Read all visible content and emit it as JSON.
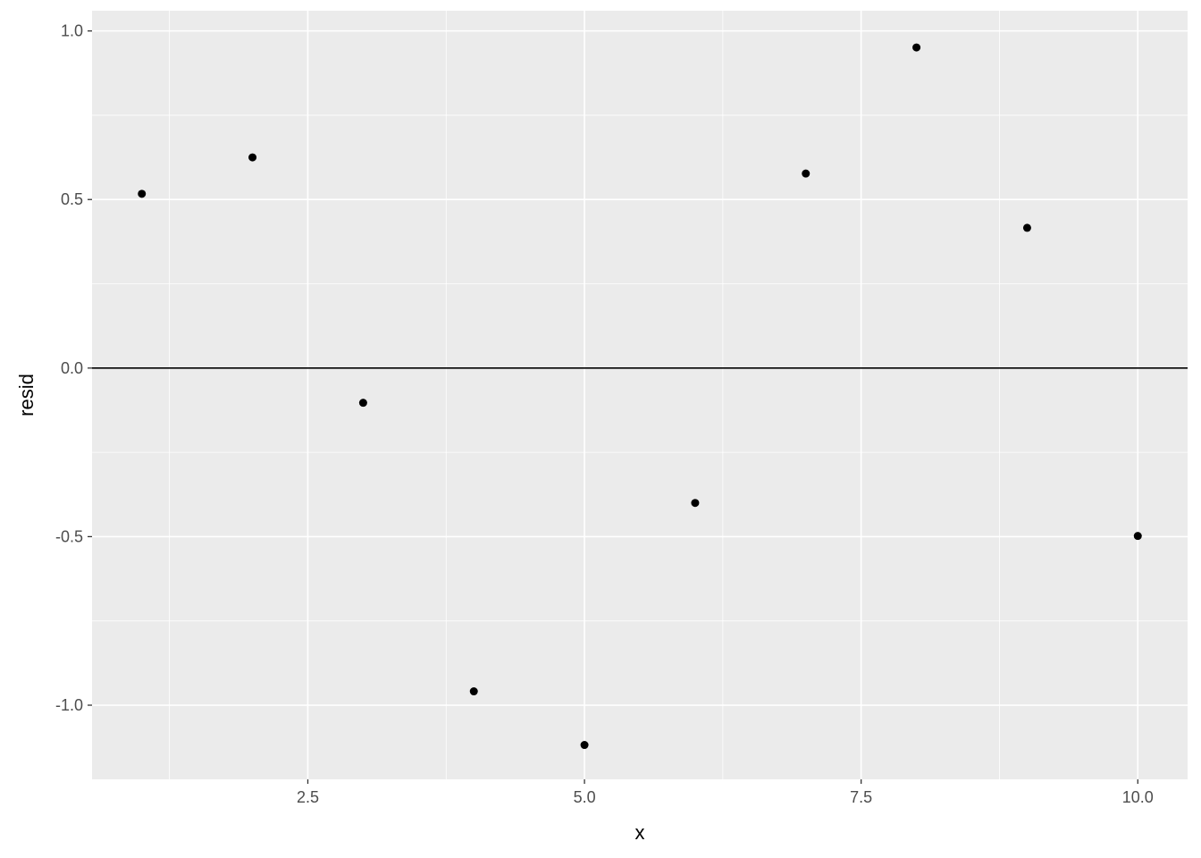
{
  "chart_data": {
    "type": "scatter",
    "title": "",
    "xlabel": "x",
    "ylabel": "resid",
    "xlim": [
      0.55,
      10.45
    ],
    "ylim": [
      -1.22,
      1.06
    ],
    "x_ticks": [
      2.5,
      5.0,
      7.5,
      10.0
    ],
    "x_tick_labels": [
      "2.5",
      "5.0",
      "7.5",
      "10.0"
    ],
    "y_ticks": [
      1.0,
      0.5,
      0.0,
      -0.5,
      -1.0
    ],
    "y_tick_labels": [
      "1.0",
      "0.5",
      "0.0",
      "-0.5",
      "-1.0"
    ],
    "x_minor": [
      1.25,
      3.75,
      6.25,
      8.75
    ],
    "y_minor": [
      0.75,
      0.25,
      -0.25,
      -0.75
    ],
    "grid": true,
    "reference_line": {
      "y": 0,
      "color": "#000000"
    },
    "x": [
      1,
      2,
      3,
      4,
      5,
      6,
      7,
      8,
      9,
      10
    ],
    "y": [
      0.517,
      0.625,
      -0.103,
      -0.959,
      -1.118,
      -0.4,
      0.577,
      0.951,
      0.416,
      -0.498
    ],
    "colors": {
      "panel": "#EBEBEB",
      "grid": "#FFFFFF",
      "point": "#000000",
      "tick_text": "#4D4D4D"
    }
  }
}
